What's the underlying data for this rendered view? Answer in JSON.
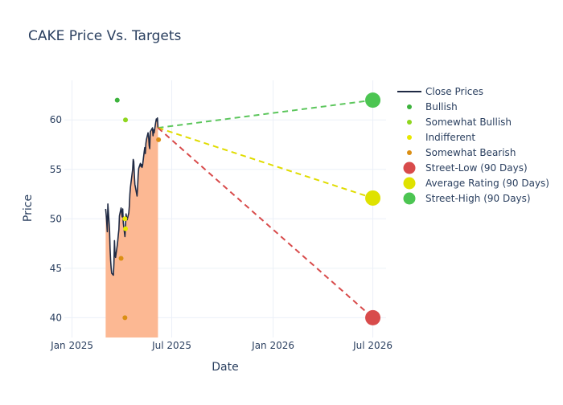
{
  "chart_data": {
    "type": "line",
    "title": "CAKE Price Vs. Targets",
    "xlabel": "Date",
    "ylabel": "Price",
    "xlim": [
      "2024-12-18",
      "2026-07-25"
    ],
    "ylim": [
      38,
      64
    ],
    "x_ticks": [
      {
        "date": "2025-01-01",
        "label": "Jan 2025"
      },
      {
        "date": "2025-07-01",
        "label": "Jul 2025"
      },
      {
        "date": "2026-01-01",
        "label": "Jan 2026"
      },
      {
        "date": "2026-07-01",
        "label": "Jul 2026"
      }
    ],
    "y_ticks": [
      40,
      45,
      50,
      55,
      60
    ],
    "grid": true,
    "legend_position": "right",
    "close_prices": {
      "name": "Close Prices",
      "color": "#1f2a44",
      "fill_color": "#fcb893",
      "points": [
        [
          "2025-03-03",
          51.0
        ],
        [
          "2025-03-04",
          50.4
        ],
        [
          "2025-03-05",
          49.6
        ],
        [
          "2025-03-06",
          48.7
        ],
        [
          "2025-03-07",
          51.5
        ],
        [
          "2025-03-10",
          49.0
        ],
        [
          "2025-03-11",
          47.0
        ],
        [
          "2025-03-12",
          45.8
        ],
        [
          "2025-03-13",
          45.0
        ],
        [
          "2025-03-14",
          44.5
        ],
        [
          "2025-03-17",
          44.3
        ],
        [
          "2025-03-18",
          45.5
        ],
        [
          "2025-03-19",
          47.8
        ],
        [
          "2025-03-20",
          46.4
        ],
        [
          "2025-03-21",
          46.1
        ],
        [
          "2025-03-24",
          47.3
        ],
        [
          "2025-03-25",
          47.8
        ],
        [
          "2025-03-26",
          48.4
        ],
        [
          "2025-03-27",
          48.9
        ],
        [
          "2025-03-28",
          50.3
        ],
        [
          "2025-03-31",
          51.1
        ],
        [
          "2025-04-01",
          50.6
        ],
        [
          "2025-04-02",
          50.2
        ],
        [
          "2025-04-03",
          51.0
        ],
        [
          "2025-04-04",
          49.6
        ],
        [
          "2025-04-07",
          48.2
        ],
        [
          "2025-04-08",
          49.2
        ],
        [
          "2025-04-09",
          50.5
        ],
        [
          "2025-04-10",
          50.1
        ],
        [
          "2025-04-11",
          49.9
        ],
        [
          "2025-04-14",
          50.6
        ],
        [
          "2025-04-15",
          51.3
        ],
        [
          "2025-04-16",
          52.5
        ],
        [
          "2025-04-17",
          53.2
        ],
        [
          "2025-04-21",
          55.0
        ],
        [
          "2025-04-22",
          56.0
        ],
        [
          "2025-04-23",
          55.8
        ],
        [
          "2025-04-24",
          54.5
        ],
        [
          "2025-04-25",
          53.5
        ],
        [
          "2025-04-28",
          52.6
        ],
        [
          "2025-04-29",
          52.3
        ],
        [
          "2025-04-30",
          53.2
        ],
        [
          "2025-05-01",
          54.4
        ],
        [
          "2025-05-02",
          55.1
        ],
        [
          "2025-05-05",
          55.6
        ],
        [
          "2025-05-06",
          55.3
        ],
        [
          "2025-05-07",
          55.5
        ],
        [
          "2025-05-08",
          55.2
        ],
        [
          "2025-05-09",
          55.4
        ],
        [
          "2025-05-12",
          56.8
        ],
        [
          "2025-05-13",
          57.2
        ],
        [
          "2025-05-14",
          56.6
        ],
        [
          "2025-05-15",
          57.6
        ],
        [
          "2025-05-16",
          58.0
        ],
        [
          "2025-05-19",
          58.7
        ],
        [
          "2025-05-20",
          58.3
        ],
        [
          "2025-05-21",
          57.4
        ],
        [
          "2025-05-22",
          57.1
        ],
        [
          "2025-05-23",
          58.8
        ],
        [
          "2025-05-27",
          59.2
        ],
        [
          "2025-05-28",
          58.4
        ],
        [
          "2025-05-29",
          59.0
        ],
        [
          "2025-05-30",
          58.7
        ],
        [
          "2025-06-02",
          59.8
        ],
        [
          "2025-06-03",
          60.1
        ],
        [
          "2025-06-04",
          59.9
        ],
        [
          "2025-06-05",
          60.2
        ],
        [
          "2025-06-06",
          59.2
        ]
      ]
    },
    "rating_points": [
      {
        "category": "bullish",
        "date": "2025-03-24",
        "value": 62
      },
      {
        "category": "somewhat_bullish",
        "date": "2025-04-08",
        "value": 60
      },
      {
        "category": "indifferent",
        "date": "2025-04-07",
        "value": 50
      },
      {
        "category": "indifferent",
        "date": "2025-04-08",
        "value": 49
      },
      {
        "category": "somewhat_bearish",
        "date": "2025-03-31",
        "value": 46
      },
      {
        "category": "somewhat_bearish",
        "date": "2025-04-07",
        "value": 40
      },
      {
        "category": "somewhat_bearish",
        "date": "2025-06-07",
        "value": 58
      }
    ],
    "targets": {
      "start_date": "2025-06-06",
      "start_value": 59.2,
      "end_date": "2026-07-01",
      "street_low": 40,
      "average": 52.1,
      "street_high": 62
    },
    "legend": [
      {
        "key": "close",
        "label": "Close Prices",
        "symbol": "line",
        "color": "#1f2a44"
      },
      {
        "key": "bullish",
        "label": "Bullish",
        "symbol": "dot",
        "color": "#3db33d"
      },
      {
        "key": "somewhat_bullish",
        "label": "Somewhat Bullish",
        "symbol": "dot",
        "color": "#8fd61f"
      },
      {
        "key": "indifferent",
        "label": "Indifferent",
        "symbol": "dot",
        "color": "#e8e800"
      },
      {
        "key": "somewhat_bearish",
        "label": "Somewhat Bearish",
        "symbol": "dot",
        "color": "#db8f14"
      },
      {
        "key": "street_low",
        "label": "Street-Low (90 Days)",
        "symbol": "bigdot",
        "color": "#d84b4b"
      },
      {
        "key": "average",
        "label": "Average Rating (90 Days)",
        "symbol": "bigdot",
        "color": "#dfe200"
      },
      {
        "key": "street_high",
        "label": "Street-High (90 Days)",
        "symbol": "bigdot",
        "color": "#4cc552"
      }
    ],
    "colors": {
      "bullish": "#3db33d",
      "somewhat_bullish": "#8fd61f",
      "indifferent": "#e8e800",
      "somewhat_bearish": "#db8f14",
      "street_low": "#d84b4b",
      "average": "#dfe200",
      "street_high": "#4cc552",
      "low_line": "#d84b4b",
      "avg_line": "#e0dc00",
      "high_line": "#5cc65c",
      "grid": "#ebf0f8",
      "axis_text": "#2a3f5f"
    }
  }
}
